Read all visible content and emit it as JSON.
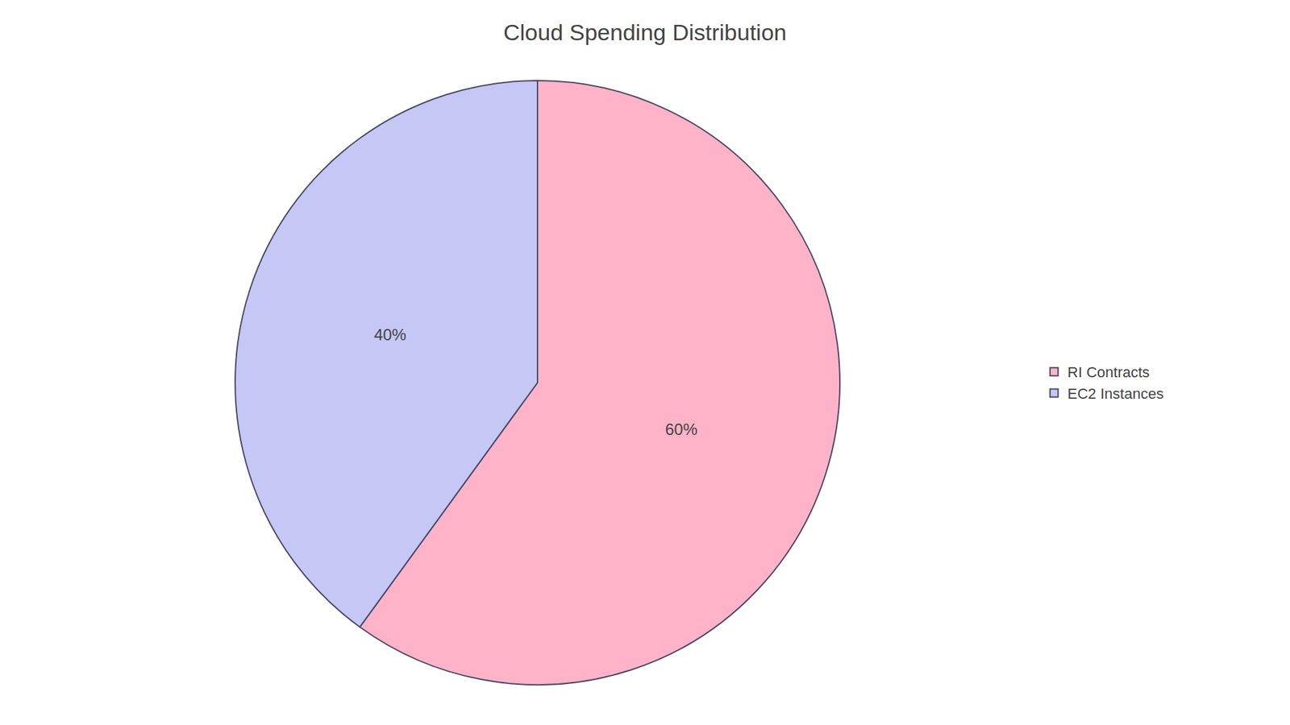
{
  "chart_data": {
    "type": "pie",
    "title": "Cloud Spending Distribution",
    "categories": [
      "RI Contracts",
      "EC2 Instances"
    ],
    "values": [
      60,
      40
    ],
    "value_labels": [
      "60%",
      "40%"
    ],
    "colors": [
      "#FFB3C8",
      "#C5C8F5"
    ],
    "data_labels": true,
    "legend": "right"
  }
}
